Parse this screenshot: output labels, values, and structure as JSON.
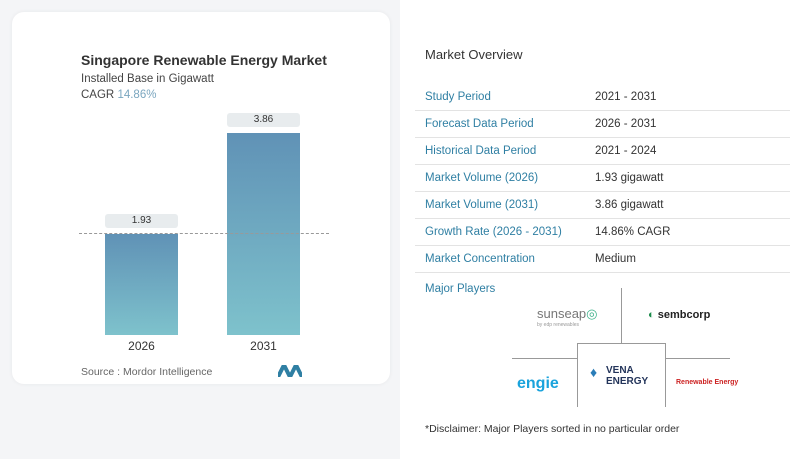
{
  "chart_data": {
    "type": "bar",
    "title": "Singapore Renewable Energy Market",
    "subtitle": "Installed Base in Gigawatt",
    "cagr_label": "CAGR",
    "cagr_value": "14.86%",
    "categories": [
      "2026",
      "2031"
    ],
    "values": [
      1.93,
      3.86
    ],
    "value_labels": [
      "1.93",
      "3.86"
    ],
    "ylim": [
      0,
      3.86
    ],
    "bar_colors": [
      "#6092b6",
      "#7ec2cc"
    ],
    "source": "Source :  Mordor Intelligence"
  },
  "overview": {
    "title": "Market Overview",
    "rows": [
      {
        "label": "Study Period",
        "value": "2021 - 2031"
      },
      {
        "label": "Forecast Data Period",
        "value": "2026 - 2031"
      },
      {
        "label": "Historical Data Period",
        "value": "2021 - 2024"
      },
      {
        "label": "Market Volume (2026)",
        "value": "1.93 gigawatt"
      },
      {
        "label": "Market Volume (2031)",
        "value": "3.86 gigawatt"
      },
      {
        "label": "Growth Rate (2026 - 2031)",
        "value": "14.86% CAGR"
      },
      {
        "label": "Market Concentration",
        "value": "Medium"
      }
    ],
    "major_players_title": "Major Players",
    "players": [
      "sunseap",
      "sembcorp",
      "VENA ENERGY",
      "engie",
      "Renewable Energy"
    ],
    "sunseap_sub": "by edp renewables",
    "disclaimer": "*Disclaimer: Major Players sorted in no particular order"
  }
}
